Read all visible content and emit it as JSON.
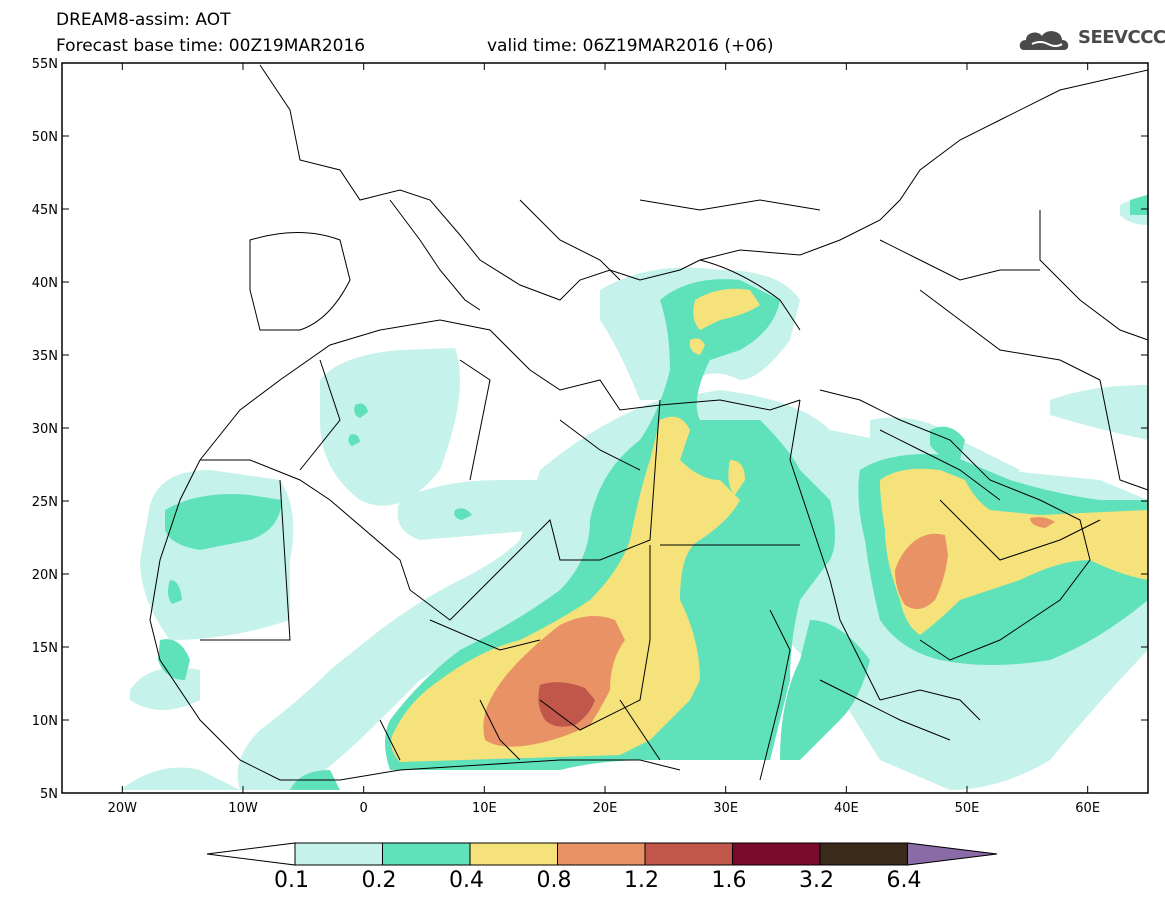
{
  "header": {
    "line1": "DREAM8-assim: AOT",
    "line2": "Forecast base time: 00Z19MAR2016",
    "valid": "valid time: 06Z19MAR2016 (+06)",
    "logo_text": "SEEVCCC",
    "logo_icon": "cloud-icon"
  },
  "axes": {
    "lat_labels": [
      "55N",
      "50N",
      "45N",
      "40N",
      "35N",
      "30N",
      "25N",
      "20N",
      "15N",
      "10N",
      "5N"
    ],
    "lon_labels": [
      "20W",
      "10W",
      "0",
      "10E",
      "20E",
      "30E",
      "40E",
      "50E",
      "60E"
    ],
    "lat_range": [
      5,
      55
    ],
    "lon_range": [
      -25,
      65
    ]
  },
  "colorbar": {
    "labels": [
      "0.1",
      "0.2",
      "0.4",
      "0.8",
      "1.2",
      "1.6",
      "3.2",
      "6.4"
    ],
    "colors": [
      "#c5f2ea",
      "#5fe1b9",
      "#f6e27a",
      "#e99266",
      "#c0574a",
      "#7a0a2b",
      "#3a2a1a",
      "#8b6aa8"
    ],
    "low_color": "#ffffff"
  },
  "map_colors": {
    "c1": "#c5f2ea",
    "c2": "#5fe1b9",
    "c3": "#f6e27a",
    "c4": "#e99266",
    "c5": "#c0574a",
    "border": "#000000"
  }
}
